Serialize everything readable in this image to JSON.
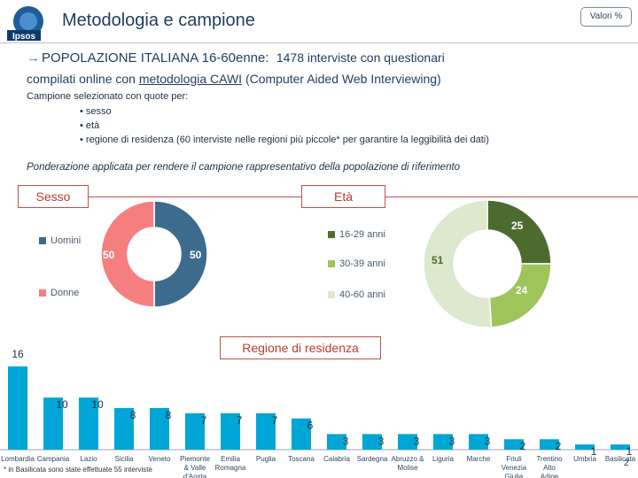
{
  "header": {
    "logo_text": "Ipsos",
    "title": "Metodologia e campione",
    "values_unit": "Valori %"
  },
  "intro": {
    "population": "POPOLAZIONE ITALIANA 16-60enne:",
    "interviews": "1478 interviste con questionari",
    "line2_prefix": "compilati online con",
    "method": "metodologia CAWI",
    "line2_suffix": "(Computer Aided Web Interviewing)",
    "quota_head": "Campione selezionato con quote per:",
    "quota_items": [
      "sesso",
      "età",
      "regione di residenza (60 interviste nelle regioni più piccole* per garantire la leggibilità dei dati)"
    ],
    "weighting": "Ponderazione applicata per rendere il campione rappresentativo della popolazione di riferimento"
  },
  "footnote": "* in Basilicata sono state effettuate 55 interviste",
  "page_number": "2",
  "chart_data": [
    {
      "type": "pie",
      "variant": "donut",
      "title": "Sesso",
      "categories": [
        "Uomini",
        "Donne"
      ],
      "values": [
        50,
        50
      ],
      "colors": [
        "#3d6b8e",
        "#f57f7f"
      ],
      "labels": [
        "50",
        "50"
      ]
    },
    {
      "type": "pie",
      "variant": "donut",
      "title": "Età",
      "categories": [
        "16-29 anni",
        "30-39 anni",
        "40-60 anni"
      ],
      "values": [
        25,
        24,
        51
      ],
      "colors": [
        "#4d6b2e",
        "#9dc55a",
        "#dde8cc"
      ],
      "labels": [
        "25",
        "24",
        "51"
      ]
    },
    {
      "type": "bar",
      "title": "Regione di residenza",
      "categories": [
        "Lombardia",
        "Campania",
        "Lazio",
        "Sicilia",
        "Veneto",
        "Piemonte & Valle d'Aosta",
        "Emilia Romagna",
        "Puglia",
        "Toscana",
        "Calabria",
        "Sardegna",
        "Abruzzo & Molise",
        "Liguria",
        "Marche",
        "Friuli Venezia Giulia",
        "Trentino Alto Adige",
        "Umbria",
        "Basilicata"
      ],
      "values": [
        16,
        10,
        10,
        8,
        8,
        7,
        7,
        7,
        6,
        3,
        3,
        3,
        3,
        3,
        2,
        2,
        1,
        1
      ],
      "color": "#00a6d6",
      "ylim": [
        0,
        17
      ]
    }
  ]
}
